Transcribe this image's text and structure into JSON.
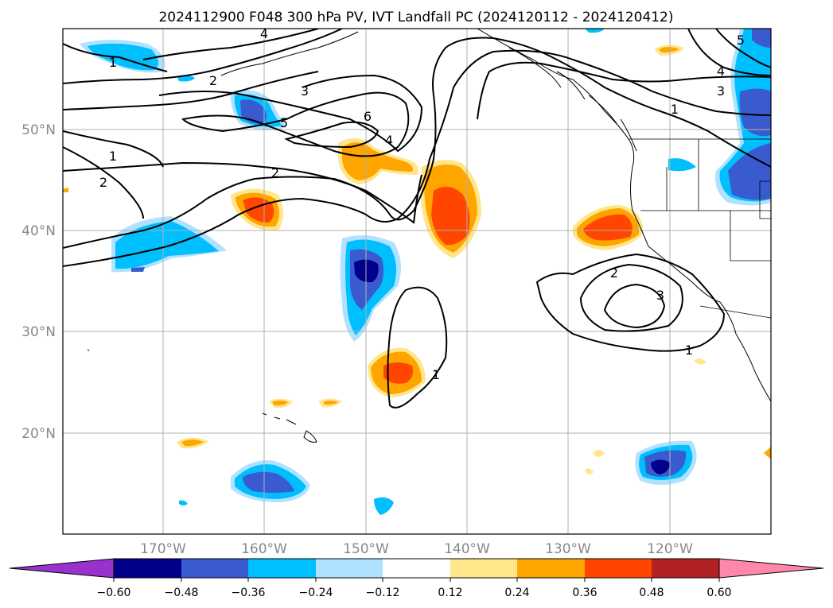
{
  "title": "2024112900 F048 300 hPa PV, IVT Landfall PC (2024120112 - 2024120412)",
  "map": {
    "lat_labels": [
      "50°N",
      "40°N",
      "30°N",
      "20°N"
    ],
    "lon_labels": [
      "170°W",
      "160°W",
      "150°W",
      "140°W",
      "130°W",
      "120°W"
    ],
    "gridlines": true
  },
  "colorbar": {
    "ticks": [
      "−0.60",
      "−0.48",
      "−0.36",
      "−0.24",
      "−0.12",
      "0.12",
      "0.24",
      "0.36",
      "0.48",
      "0.60"
    ],
    "colors": {
      "under": "#9932cc",
      "n060": "#00008b",
      "n048": "#3a5bd0",
      "n036": "#00bfff",
      "n024": "#b0e2ff",
      "zero": "#ffffff",
      "p012": "#ffe68a",
      "p024": "#ffa500",
      "p036": "#ff4500",
      "p048": "#b22222",
      "over": "#ff88aa"
    }
  },
  "contour_labels": {
    "c1": "1",
    "c2": "2",
    "c3": "3",
    "c4": "4",
    "c5": "5",
    "c6": "6"
  }
}
